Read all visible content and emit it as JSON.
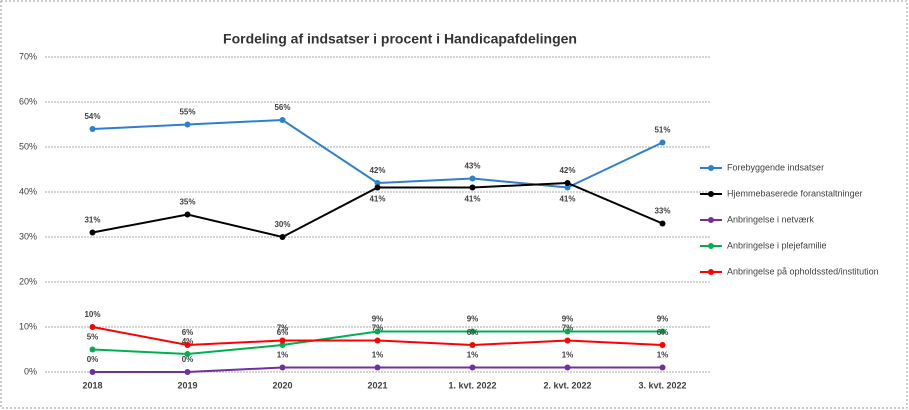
{
  "chart_data": {
    "type": "line",
    "title": "Fordeling af indsatser i procent i Handicapafdelingen",
    "categories": [
      "2018",
      "2019",
      "2020",
      "2021",
      "1. kvt. 2022",
      "2. kvt. 2022",
      "3. kvt. 2022"
    ],
    "series": [
      {
        "name": "Forebyggende indsatser",
        "color": "#2e7fd0",
        "values": [
          54,
          55,
          56,
          42,
          43,
          41,
          51
        ],
        "value_labels": [
          "54%",
          "55%",
          "56%",
          "42%",
          "43%",
          "41%",
          "51%"
        ]
      },
      {
        "name": "Hjemmebaserede foranstaltninger",
        "color": "#000000",
        "values": [
          31,
          35,
          30,
          41,
          41,
          42,
          33
        ],
        "value_labels": [
          "31%",
          "35%",
          "30%",
          "41%",
          "41%",
          "42%",
          "33%"
        ]
      },
      {
        "name": "Anbringelse i netværk",
        "color": "#7030a0",
        "values": [
          0,
          0,
          1,
          1,
          1,
          1,
          1
        ],
        "value_labels": [
          "0%",
          "0%",
          "1%",
          "1%",
          "1%",
          "1%",
          "1%"
        ]
      },
      {
        "name": "Anbringelse i plejefamilie",
        "color": "#00b050",
        "values": [
          5,
          4,
          6,
          9,
          9,
          9,
          9
        ],
        "value_labels": [
          "5%",
          "4%",
          "6%",
          "9%",
          "9%",
          "9%",
          "9%"
        ]
      },
      {
        "name": "Anbringelse på opholdssted/institution",
        "color": "#ff0000",
        "values": [
          10,
          6,
          7,
          7,
          6,
          7,
          6
        ],
        "value_labels": [
          "10%",
          "6%",
          "7%",
          "7%",
          "6%",
          "7%",
          "6%"
        ]
      }
    ],
    "ylim": [
      0,
      70
    ],
    "yticks": [
      {
        "value": 0,
        "label": "0%"
      },
      {
        "value": 10,
        "label": "10%"
      },
      {
        "value": 20,
        "label": "20%"
      },
      {
        "value": 30,
        "label": "30%"
      },
      {
        "value": 40,
        "label": "40%"
      },
      {
        "value": 50,
        "label": "50%"
      },
      {
        "value": 60,
        "label": "60%"
      },
      {
        "value": 70,
        "label": "70%"
      }
    ],
    "grid": true,
    "legend": "right"
  }
}
